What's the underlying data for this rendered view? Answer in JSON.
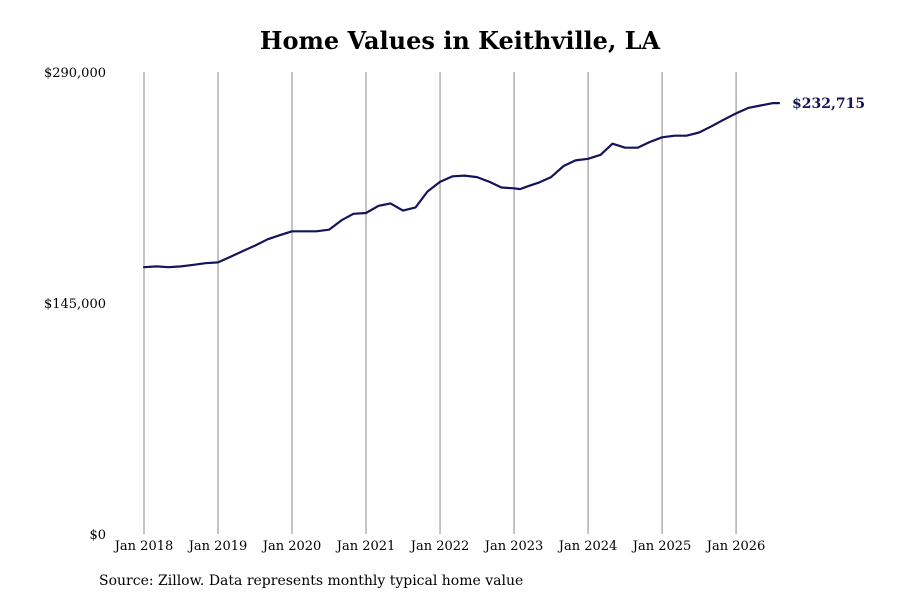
{
  "chart_data": {
    "type": "line",
    "title": "Home Values in Keithville, LA",
    "xlabel": "",
    "ylabel": "",
    "ylim": [
      0,
      290000
    ],
    "y_ticks": [
      "$0",
      "$145,000",
      "$290,000"
    ],
    "y_tick_values": [
      0,
      145000,
      290000
    ],
    "x_ticks": [
      "Jan 2018",
      "Jan 2019",
      "Jan 2020",
      "Jan 2021",
      "Jan 2022",
      "Jan 2023",
      "Jan 2024",
      "Jan 2025",
      "Jan 2026"
    ],
    "x_tick_values": [
      2018,
      2019,
      2020,
      2021,
      2022,
      2023,
      2024,
      2025,
      2026
    ],
    "xlim": [
      2018,
      2026.58
    ],
    "grid": "vertical",
    "line_color": "#14145a",
    "end_label": "$232,715",
    "series": [
      {
        "x": [
          2018.0,
          2018.17,
          2018.33,
          2018.5,
          2018.67,
          2018.83,
          2019.0,
          2019.17,
          2019.33,
          2019.5,
          2019.67,
          2019.83,
          2020.0,
          2020.17,
          2020.33,
          2020.5,
          2020.67,
          2020.83,
          2021.0,
          2021.17,
          2021.33,
          2021.5,
          2021.67,
          2021.83,
          2022.0,
          2022.17,
          2022.33,
          2022.5,
          2022.67,
          2022.83,
          2023.0,
          2023.08,
          2023.17,
          2023.33,
          2023.5,
          2023.67,
          2023.83,
          2024.0,
          2024.17,
          2024.33,
          2024.5,
          2024.67,
          2024.83,
          2025.0,
          2025.17,
          2025.33,
          2025.5,
          2025.67,
          2025.83,
          2026.0,
          2026.17,
          2026.33,
          2026.5,
          2026.58
        ],
        "y": [
          167500,
          168000,
          167500,
          168000,
          169000,
          170000,
          170500,
          174000,
          177500,
          181000,
          185000,
          187500,
          190000,
          190000,
          190000,
          191000,
          197000,
          201000,
          201500,
          206000,
          207500,
          203000,
          205000,
          215000,
          221000,
          224500,
          225000,
          224000,
          221000,
          217500,
          217000,
          216500,
          218000,
          220500,
          224000,
          231000,
          234500,
          235500,
          238000,
          245000,
          242500,
          242500,
          246000,
          249000,
          250000,
          250000,
          252000,
          256000,
          260000,
          264000,
          267500,
          269000,
          270500,
          232715
        ]
      }
    ]
  },
  "footer": {
    "source": "Source: Zillow. Data represents monthly typical home value"
  }
}
